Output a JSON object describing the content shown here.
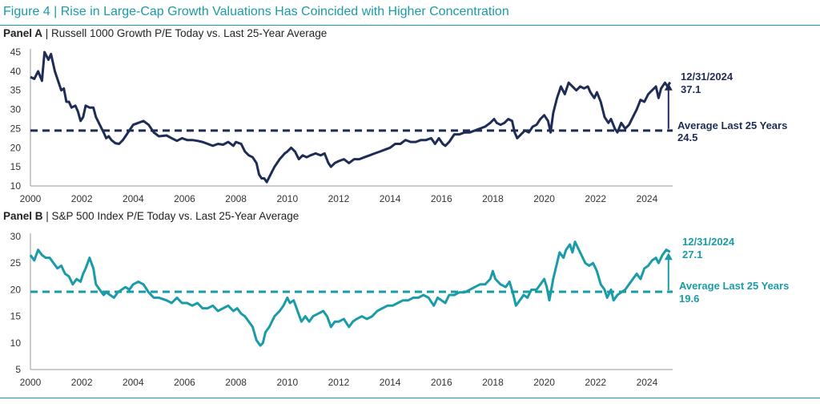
{
  "figure": {
    "title": "Figure 4 | Rise in Large-Cap Growth Valuations Has Coincided with Higher Concentration"
  },
  "chart_data": [
    {
      "type": "line",
      "panel_label": "Panel A",
      "title": " | Russell 1000 Growth P/E Today vs. Last 25-Year Average",
      "color": "#1f2d56",
      "x_ticks": [
        "2000",
        "2002",
        "2004",
        "2006",
        "2008",
        "2010",
        "2012",
        "2014",
        "2016",
        "2018",
        "2020",
        "2022",
        "2024"
      ],
      "y_ticks": [
        "45",
        "40",
        "35",
        "30",
        "25",
        "20",
        "15",
        "10"
      ],
      "ylim": [
        10,
        45
      ],
      "xlim": [
        2000,
        2025
      ],
      "average": 24.5,
      "latest_date": "12/31/2024",
      "latest_value": "37.1",
      "avg_label": "Average Last 25 Years",
      "avg_value": "24.5",
      "series": [
        [
          2000.0,
          38.5
        ],
        [
          2000.15,
          38
        ],
        [
          2000.3,
          40
        ],
        [
          2000.45,
          37.5
        ],
        [
          2000.55,
          45
        ],
        [
          2000.7,
          43
        ],
        [
          2000.8,
          44.5
        ],
        [
          2000.95,
          40
        ],
        [
          2001.05,
          38
        ],
        [
          2001.2,
          35
        ],
        [
          2001.3,
          35.5
        ],
        [
          2001.4,
          32
        ],
        [
          2001.5,
          32
        ],
        [
          2001.6,
          30.5
        ],
        [
          2001.75,
          31
        ],
        [
          2001.85,
          29.5
        ],
        [
          2001.95,
          27
        ],
        [
          2002.05,
          28
        ],
        [
          2002.15,
          31
        ],
        [
          2002.3,
          30.5
        ],
        [
          2002.45,
          30.5
        ],
        [
          2002.55,
          28
        ],
        [
          2002.7,
          26
        ],
        [
          2002.85,
          24
        ],
        [
          2002.95,
          22.5
        ],
        [
          2003.05,
          23
        ],
        [
          2003.15,
          22
        ],
        [
          2003.3,
          21.2
        ],
        [
          2003.45,
          21
        ],
        [
          2003.6,
          22
        ],
        [
          2003.75,
          23.5
        ],
        [
          2003.9,
          25
        ],
        [
          2004.0,
          26
        ],
        [
          2004.2,
          26.5
        ],
        [
          2004.4,
          27
        ],
        [
          2004.6,
          26
        ],
        [
          2004.8,
          24
        ],
        [
          2005.0,
          23
        ],
        [
          2005.3,
          23.2
        ],
        [
          2005.5,
          22.5
        ],
        [
          2005.7,
          21.8
        ],
        [
          2005.9,
          22.5
        ],
        [
          2006.1,
          22
        ],
        [
          2006.3,
          22
        ],
        [
          2006.5,
          21.8
        ],
        [
          2006.7,
          21.5
        ],
        [
          2006.9,
          21
        ],
        [
          2007.1,
          20.5
        ],
        [
          2007.3,
          21
        ],
        [
          2007.5,
          20.8
        ],
        [
          2007.7,
          21.5
        ],
        [
          2007.9,
          20.5
        ],
        [
          2008.0,
          21.5
        ],
        [
          2008.2,
          21
        ],
        [
          2008.35,
          19
        ],
        [
          2008.5,
          18
        ],
        [
          2008.65,
          17.5
        ],
        [
          2008.8,
          16
        ],
        [
          2008.9,
          13
        ],
        [
          2009.0,
          12
        ],
        [
          2009.1,
          12
        ],
        [
          2009.2,
          11
        ],
        [
          2009.35,
          13
        ],
        [
          2009.5,
          15
        ],
        [
          2009.7,
          17
        ],
        [
          2009.9,
          18.5
        ],
        [
          2010.0,
          19
        ],
        [
          2010.15,
          20
        ],
        [
          2010.3,
          19
        ],
        [
          2010.45,
          17
        ],
        [
          2010.6,
          18
        ],
        [
          2010.75,
          17.5
        ],
        [
          2010.9,
          18
        ],
        [
          2011.1,
          18.5
        ],
        [
          2011.3,
          18
        ],
        [
          2011.45,
          18.5
        ],
        [
          2011.6,
          16
        ],
        [
          2011.7,
          15
        ],
        [
          2011.85,
          16
        ],
        [
          2012.0,
          16.5
        ],
        [
          2012.2,
          17
        ],
        [
          2012.4,
          16
        ],
        [
          2012.6,
          17
        ],
        [
          2012.8,
          17
        ],
        [
          2013.0,
          17.5
        ],
        [
          2013.2,
          18
        ],
        [
          2013.4,
          18.5
        ],
        [
          2013.6,
          19
        ],
        [
          2013.8,
          19.5
        ],
        [
          2014.0,
          20
        ],
        [
          2014.2,
          21
        ],
        [
          2014.4,
          21
        ],
        [
          2014.6,
          22
        ],
        [
          2014.8,
          21.5
        ],
        [
          2015.0,
          21.5
        ],
        [
          2015.2,
          22
        ],
        [
          2015.4,
          22
        ],
        [
          2015.6,
          22.5
        ],
        [
          2015.75,
          21
        ],
        [
          2015.9,
          22.5
        ],
        [
          2016.05,
          21
        ],
        [
          2016.15,
          20.5
        ],
        [
          2016.3,
          21.5
        ],
        [
          2016.5,
          23.5
        ],
        [
          2016.7,
          23.5
        ],
        [
          2016.9,
          24
        ],
        [
          2017.1,
          24
        ],
        [
          2017.3,
          24.5
        ],
        [
          2017.5,
          25
        ],
        [
          2017.7,
          25.5
        ],
        [
          2017.9,
          26.5
        ],
        [
          2018.05,
          27.5
        ],
        [
          2018.15,
          26.5
        ],
        [
          2018.3,
          26
        ],
        [
          2018.45,
          26.5
        ],
        [
          2018.6,
          27.5
        ],
        [
          2018.75,
          27
        ],
        [
          2018.85,
          24
        ],
        [
          2018.95,
          22.5
        ],
        [
          2019.1,
          23.5
        ],
        [
          2019.25,
          24.5
        ],
        [
          2019.4,
          24
        ],
        [
          2019.55,
          25.5
        ],
        [
          2019.7,
          26
        ],
        [
          2019.85,
          27.5
        ],
        [
          2020.0,
          28.5
        ],
        [
          2020.15,
          27
        ],
        [
          2020.25,
          24
        ],
        [
          2020.35,
          29
        ],
        [
          2020.5,
          33
        ],
        [
          2020.65,
          36
        ],
        [
          2020.8,
          34
        ],
        [
          2020.95,
          37
        ],
        [
          2021.1,
          36
        ],
        [
          2021.25,
          35
        ],
        [
          2021.4,
          36
        ],
        [
          2021.55,
          35.5
        ],
        [
          2021.7,
          36
        ],
        [
          2021.8,
          34.5
        ],
        [
          2021.95,
          33
        ],
        [
          2022.05,
          34.5
        ],
        [
          2022.2,
          32
        ],
        [
          2022.35,
          28
        ],
        [
          2022.5,
          26.5
        ],
        [
          2022.6,
          27.5
        ],
        [
          2022.75,
          25
        ],
        [
          2022.85,
          24
        ],
        [
          2023.0,
          26.5
        ],
        [
          2023.15,
          25
        ],
        [
          2023.3,
          26
        ],
        [
          2023.45,
          28
        ],
        [
          2023.6,
          30
        ],
        [
          2023.75,
          32.5
        ],
        [
          2023.9,
          32
        ],
        [
          2024.05,
          34
        ],
        [
          2024.2,
          35
        ],
        [
          2024.35,
          36
        ],
        [
          2024.45,
          33
        ],
        [
          2024.55,
          35.5
        ],
        [
          2024.7,
          37
        ],
        [
          2024.8,
          36
        ],
        [
          2024.9,
          37.1
        ]
      ]
    },
    {
      "type": "line",
      "panel_label": "Panel B",
      "title": " | S&P 500 Index P/E Today vs. Last 25-Year Average",
      "color": "#1a9ba8",
      "x_ticks": [
        "2000",
        "2002",
        "2004",
        "2006",
        "2008",
        "2010",
        "2012",
        "2014",
        "2016",
        "2018",
        "2020",
        "2022",
        "2024"
      ],
      "y_ticks": [
        "30",
        "25",
        "20",
        "15",
        "10",
        "5"
      ],
      "ylim": [
        5,
        30
      ],
      "xlim": [
        2000,
        2025
      ],
      "average": 19.6,
      "latest_date": "12/31/2024",
      "latest_value": "27.1",
      "avg_label": "Average Last 25 Years",
      "avg_value": "19.6",
      "series": [
        [
          2000.0,
          26.5
        ],
        [
          2000.15,
          25.5
        ],
        [
          2000.3,
          27.5
        ],
        [
          2000.45,
          26.5
        ],
        [
          2000.6,
          26
        ],
        [
          2000.75,
          26
        ],
        [
          2000.9,
          25
        ],
        [
          2001.05,
          24
        ],
        [
          2001.2,
          24.5
        ],
        [
          2001.35,
          23
        ],
        [
          2001.5,
          22.5
        ],
        [
          2001.65,
          21
        ],
        [
          2001.8,
          22
        ],
        [
          2001.95,
          21.5
        ],
        [
          2002.05,
          23
        ],
        [
          2002.15,
          24
        ],
        [
          2002.3,
          26
        ],
        [
          2002.45,
          24
        ],
        [
          2002.55,
          21
        ],
        [
          2002.7,
          20
        ],
        [
          2002.85,
          19
        ],
        [
          2002.95,
          19.5
        ],
        [
          2003.1,
          19
        ],
        [
          2003.25,
          18.5
        ],
        [
          2003.4,
          19.5
        ],
        [
          2003.55,
          20
        ],
        [
          2003.7,
          20.5
        ],
        [
          2003.85,
          20
        ],
        [
          2004.0,
          21
        ],
        [
          2004.2,
          21.5
        ],
        [
          2004.4,
          21
        ],
        [
          2004.6,
          19.5
        ],
        [
          2004.8,
          18.5
        ],
        [
          2005.0,
          18.5
        ],
        [
          2005.3,
          18
        ],
        [
          2005.5,
          17.5
        ],
        [
          2005.7,
          18.5
        ],
        [
          2005.9,
          17.5
        ],
        [
          2006.1,
          17.5
        ],
        [
          2006.3,
          17
        ],
        [
          2006.5,
          17.5
        ],
        [
          2006.7,
          16.5
        ],
        [
          2006.9,
          16.5
        ],
        [
          2007.1,
          17
        ],
        [
          2007.3,
          16
        ],
        [
          2007.5,
          16.5
        ],
        [
          2007.7,
          17
        ],
        [
          2007.9,
          16
        ],
        [
          2008.05,
          16.5
        ],
        [
          2008.2,
          15.5
        ],
        [
          2008.35,
          15
        ],
        [
          2008.5,
          14
        ],
        [
          2008.65,
          13
        ],
        [
          2008.8,
          10.5
        ],
        [
          2008.95,
          9.5
        ],
        [
          2009.05,
          10
        ],
        [
          2009.15,
          12
        ],
        [
          2009.3,
          13
        ],
        [
          2009.5,
          15
        ],
        [
          2009.7,
          16
        ],
        [
          2009.85,
          17
        ],
        [
          2010.0,
          18.5
        ],
        [
          2010.1,
          17.5
        ],
        [
          2010.25,
          18
        ],
        [
          2010.4,
          16
        ],
        [
          2010.55,
          14
        ],
        [
          2010.7,
          15
        ],
        [
          2010.85,
          14
        ],
        [
          2011.0,
          15
        ],
        [
          2011.2,
          15.5
        ],
        [
          2011.4,
          16
        ],
        [
          2011.55,
          15
        ],
        [
          2011.7,
          13
        ],
        [
          2011.85,
          14
        ],
        [
          2012.0,
          14
        ],
        [
          2012.2,
          14.5
        ],
        [
          2012.4,
          13
        ],
        [
          2012.55,
          14
        ],
        [
          2012.7,
          14.5
        ],
        [
          2012.9,
          15
        ],
        [
          2013.1,
          14.5
        ],
        [
          2013.3,
          15
        ],
        [
          2013.5,
          16
        ],
        [
          2013.7,
          16.5
        ],
        [
          2013.9,
          17
        ],
        [
          2014.1,
          17
        ],
        [
          2014.3,
          17.5
        ],
        [
          2014.5,
          18
        ],
        [
          2014.7,
          18
        ],
        [
          2014.9,
          18.5
        ],
        [
          2015.1,
          18.5
        ],
        [
          2015.3,
          19
        ],
        [
          2015.5,
          18.5
        ],
        [
          2015.7,
          17
        ],
        [
          2015.85,
          18.5
        ],
        [
          2016.0,
          18
        ],
        [
          2016.15,
          17.5
        ],
        [
          2016.3,
          19
        ],
        [
          2016.5,
          19
        ],
        [
          2016.7,
          19.5
        ],
        [
          2016.9,
          19.5
        ],
        [
          2017.1,
          20
        ],
        [
          2017.3,
          20.5
        ],
        [
          2017.5,
          21
        ],
        [
          2017.7,
          21
        ],
        [
          2017.9,
          22
        ],
        [
          2018.0,
          23.5
        ],
        [
          2018.1,
          22
        ],
        [
          2018.3,
          21
        ],
        [
          2018.5,
          20.5
        ],
        [
          2018.65,
          21.5
        ],
        [
          2018.8,
          19
        ],
        [
          2018.9,
          17
        ],
        [
          2019.05,
          18
        ],
        [
          2019.2,
          19
        ],
        [
          2019.35,
          18.5
        ],
        [
          2019.5,
          20
        ],
        [
          2019.7,
          20
        ],
        [
          2019.85,
          21
        ],
        [
          2020.0,
          22
        ],
        [
          2020.1,
          20.5
        ],
        [
          2020.2,
          18
        ],
        [
          2020.35,
          22
        ],
        [
          2020.5,
          25
        ],
        [
          2020.6,
          27
        ],
        [
          2020.75,
          26
        ],
        [
          2020.85,
          27.5
        ],
        [
          2021.0,
          28.5
        ],
        [
          2021.1,
          27
        ],
        [
          2021.2,
          29
        ],
        [
          2021.35,
          27.5
        ],
        [
          2021.5,
          26
        ],
        [
          2021.6,
          25
        ],
        [
          2021.75,
          24.5
        ],
        [
          2021.9,
          25
        ],
        [
          2022.05,
          23.5
        ],
        [
          2022.2,
          21
        ],
        [
          2022.35,
          20
        ],
        [
          2022.45,
          18.5
        ],
        [
          2022.6,
          20
        ],
        [
          2022.7,
          18
        ],
        [
          2022.85,
          19
        ],
        [
          2023.0,
          19.5
        ],
        [
          2023.15,
          20
        ],
        [
          2023.3,
          21
        ],
        [
          2023.45,
          22
        ],
        [
          2023.6,
          23
        ],
        [
          2023.75,
          22
        ],
        [
          2023.9,
          24
        ],
        [
          2024.05,
          24.5
        ],
        [
          2024.2,
          25.5
        ],
        [
          2024.35,
          26
        ],
        [
          2024.45,
          25
        ],
        [
          2024.6,
          26.5
        ],
        [
          2024.75,
          27.5
        ],
        [
          2024.9,
          27.1
        ]
      ]
    }
  ]
}
